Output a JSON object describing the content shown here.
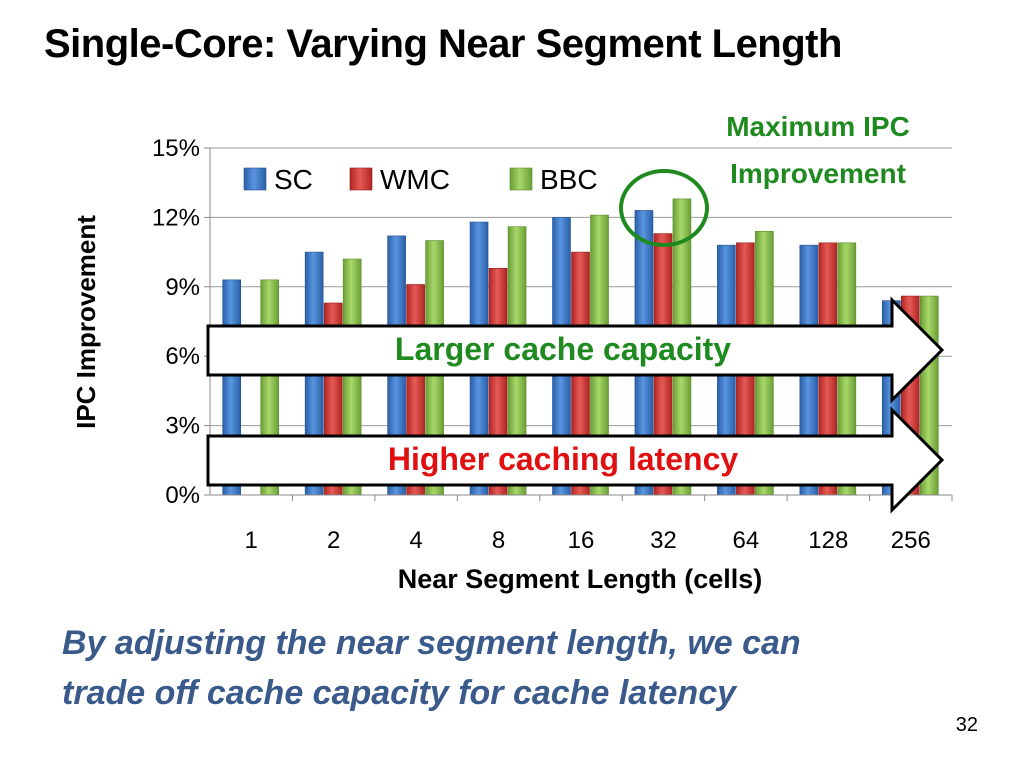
{
  "slide": {
    "title": "Single-Core: Varying Near Segment Length",
    "takeaway_line1": "By adjusting the near segment length, we can",
    "takeaway_line2": "trade off cache capacity for cache latency",
    "page_number": "32"
  },
  "annotations": {
    "max_ipc_line1": "Maximum IPC",
    "max_ipc_line2": "Improvement",
    "arrow_capacity": "Larger cache capacity",
    "arrow_latency": "Higher caching latency"
  },
  "colors": {
    "SC": "#3c78c8",
    "WMC": "#d83a37",
    "BBC": "#8cc24e",
    "annotation_green": "#1f8a1f",
    "annotation_red": "#e01010",
    "takeaway": "#3a5a8c"
  },
  "chart_data": {
    "type": "bar",
    "title": "",
    "xlabel": "Near Segment Length (cells)",
    "ylabel": "IPC Improvement",
    "categories": [
      "1",
      "2",
      "4",
      "8",
      "16",
      "32",
      "64",
      "128",
      "256"
    ],
    "ylim": [
      0,
      15
    ],
    "yticks": [
      "0%",
      "3%",
      "6%",
      "9%",
      "12%",
      "15%"
    ],
    "grid": true,
    "legend_position": "top-left",
    "series": [
      {
        "name": "SC",
        "values": [
          9.3,
          10.5,
          11.2,
          11.8,
          12.0,
          12.3,
          10.8,
          10.8,
          8.4
        ]
      },
      {
        "name": "WMC",
        "values": [
          null,
          8.3,
          9.1,
          9.8,
          10.5,
          11.3,
          10.9,
          10.9,
          8.6
        ]
      },
      {
        "name": "BBC",
        "values": [
          9.3,
          10.2,
          11.0,
          11.6,
          12.1,
          12.8,
          11.4,
          10.9,
          8.6
        ]
      }
    ]
  }
}
